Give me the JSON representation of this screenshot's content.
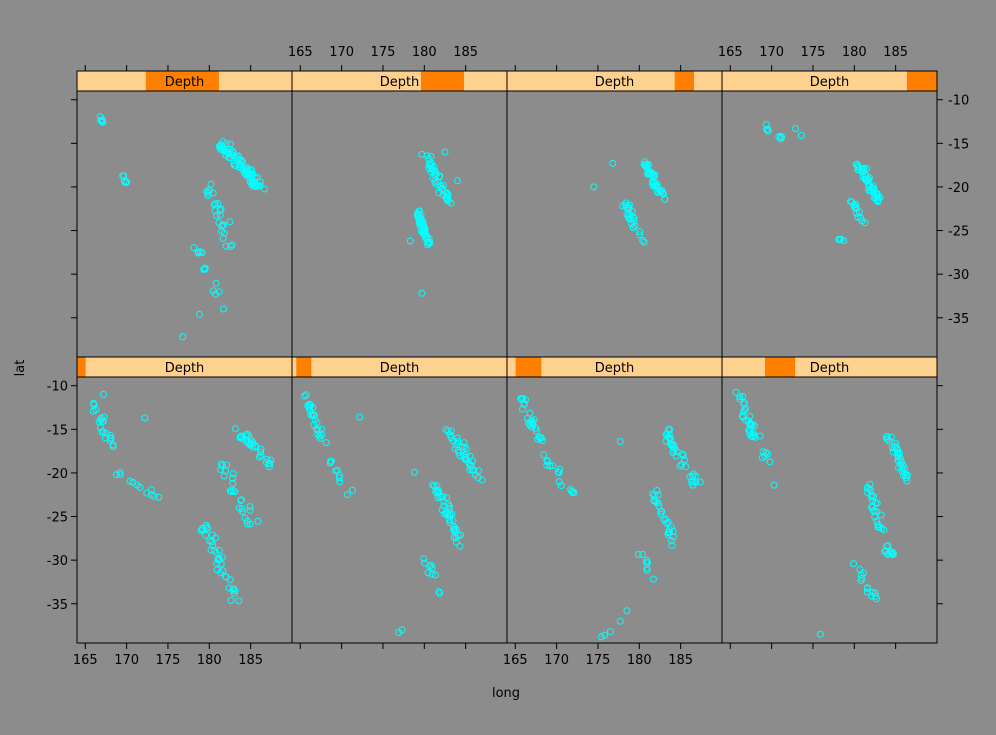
{
  "colors": {
    "background": "#8c8c8c",
    "strip_bg": "#ffd18f",
    "strip_fg": "#ff8000",
    "points": "#00ffff",
    "frame": "#000000"
  },
  "chart_data": {
    "type": "scatter",
    "layout": "conditioned scatterplot matrix, 4 columns x 2 rows",
    "title": "",
    "xlabel": "long",
    "ylabel": "lat",
    "strip_label": "Depth",
    "xlim": [
      164,
      190
    ],
    "ylim": [
      -39.5,
      -9
    ],
    "x_ticks": [
      165,
      170,
      175,
      180,
      185
    ],
    "y_ticks": [
      -10,
      -15,
      -20,
      -25,
      -30,
      -35
    ],
    "x_tick_labels": [
      "165",
      "170",
      "175",
      "180",
      "185"
    ],
    "y_tick_labels": [
      "-10",
      "-15",
      "-20",
      "-25",
      "-30",
      "-35"
    ],
    "grid": false,
    "marker": "open circle",
    "panels": [
      {
        "row": "top",
        "col": 1,
        "depth_range": [
          0.32,
          0.66
        ],
        "clusters": [
          {
            "x": [
              166.8,
              167.3
            ],
            "y": [
              -12.0,
              -13.0
            ],
            "n": 5
          },
          {
            "x": [
              169.5,
              170.0
            ],
            "y": [
              -18.8,
              -19.5
            ],
            "n": 6
          },
          {
            "x": [
              181.5,
              186.0
            ],
            "y": [
              -15.0,
              -20.0
            ],
            "n": 80
          },
          {
            "x": [
              180.0,
              182.5
            ],
            "y": [
              -20.0,
              -27.0
            ],
            "n": 24
          },
          {
            "x": [
              178.5,
              181.0
            ],
            "y": [
              -27.0,
              -32.5
            ],
            "n": 12
          }
        ],
        "points": [
          [
            176.8,
            -37.2
          ],
          [
            178.8,
            -34.6
          ],
          [
            181.7,
            -34.0
          ],
          [
            180.2,
            -19.7
          ],
          [
            182.5,
            -24.0
          ]
        ]
      },
      {
        "row": "top",
        "col": 2,
        "depth_range": [
          0.6,
          0.8
        ],
        "clusters": [
          {
            "x": [
              180.0,
              183.0
            ],
            "y": [
              -16.0,
              -22.0
            ],
            "n": 40
          },
          {
            "x": [
              179.0,
              180.5
            ],
            "y": [
              -22.5,
              -26.5
            ],
            "n": 45
          }
        ],
        "points": [
          [
            179.7,
            -32.2
          ],
          [
            178.3,
            -26.2
          ],
          [
            184.0,
            -19.3
          ],
          [
            182.5,
            -16.0
          ]
        ]
      },
      {
        "row": "top",
        "col": 3,
        "depth_range": [
          0.78,
          0.87
        ],
        "clusters": [
          {
            "x": [
              180.8,
              182.8
            ],
            "y": [
              -17.2,
              -21.5
            ],
            "n": 40
          },
          {
            "x": [
              178.0,
              180.5
            ],
            "y": [
              -21.5,
              -26.5
            ],
            "n": 25
          }
        ],
        "points": [
          [
            174.5,
            -20.0
          ],
          [
            176.8,
            -17.3
          ]
        ]
      },
      {
        "row": "top",
        "col": 4,
        "depth_range": [
          0.86,
          1.0
        ],
        "clusters": [
          {
            "x": [
              168.8,
              171.5
            ],
            "y": [
              -12.8,
              -14.8
            ],
            "n": 8
          },
          {
            "x": [
              180.5,
              182.8
            ],
            "y": [
              -17.5,
              -21.5
            ],
            "n": 45
          },
          {
            "x": [
              179.5,
              181.2
            ],
            "y": [
              -21.5,
              -24.5
            ],
            "n": 14
          },
          {
            "x": [
              178.2,
              179.0
            ],
            "y": [
              -25.8,
              -26.5
            ],
            "n": 5
          }
        ],
        "points": [
          [
            172.9,
            -13.3
          ],
          [
            173.6,
            -14.1
          ],
          [
            181.5,
            -17.9
          ]
        ]
      },
      {
        "row": "bottom",
        "col": 1,
        "depth_range": [
          0.0,
          0.04
        ],
        "clusters": [
          {
            "x": [
              165.5,
              168.5
            ],
            "y": [
              -11.5,
              -17.0
            ],
            "n": 22
          },
          {
            "x": [
              168.5,
              173.5
            ],
            "y": [
              -19.5,
              -23.0
            ],
            "n": 12
          },
          {
            "x": [
              183.5,
              188.0
            ],
            "y": [
              -15.0,
              -20.0
            ],
            "n": 30
          },
          {
            "x": [
              181.5,
              185.5
            ],
            "y": [
              -19.0,
              -26.0
            ],
            "n": 25
          },
          {
            "x": [
              179.5,
              183.5
            ],
            "y": [
              -26.0,
              -35.5
            ],
            "n": 35
          }
        ],
        "points": [
          [
            172.2,
            -13.7
          ],
          [
            167.2,
            -11.0
          ]
        ]
      },
      {
        "row": "bottom",
        "col": 2,
        "depth_range": [
          0.02,
          0.09
        ],
        "clusters": [
          {
            "x": [
              165.6,
              167.8
            ],
            "y": [
              -10.8,
              -16.5
            ],
            "n": 25
          },
          {
            "x": [
              168.5,
              171.3
            ],
            "y": [
              -18.5,
              -22.8
            ],
            "n": 10
          },
          {
            "x": [
              183.0,
              187.0
            ],
            "y": [
              -15.0,
              -21.0
            ],
            "n": 35
          },
          {
            "x": [
              181.3,
              184.5
            ],
            "y": [
              -21.0,
              -28.5
            ],
            "n": 40
          },
          {
            "x": [
              179.5,
              182.0
            ],
            "y": [
              -28.5,
              -34.5
            ],
            "n": 10
          }
        ],
        "points": [
          [
            172.2,
            -13.6
          ],
          [
            178.8,
            -19.9
          ],
          [
            177.3,
            -38.0
          ],
          [
            176.9,
            -38.3
          ]
        ]
      },
      {
        "row": "bottom",
        "col": 3,
        "depth_range": [
          0.04,
          0.16
        ],
        "clusters": [
          {
            "x": [
              165.5,
              168.0
            ],
            "y": [
              -10.8,
              -16.5
            ],
            "n": 25
          },
          {
            "x": [
              168.5,
              171.8
            ],
            "y": [
              -18.0,
              -22.5
            ],
            "n": 15
          },
          {
            "x": [
              183.0,
              187.0
            ],
            "y": [
              -15.0,
              -21.5
            ],
            "n": 35
          },
          {
            "x": [
              181.5,
              184.5
            ],
            "y": [
              -21.5,
              -29.0
            ],
            "n": 25
          },
          {
            "x": [
              180.0,
              182.5
            ],
            "y": [
              -29.0,
              -33.5
            ],
            "n": 8
          }
        ],
        "points": [
          [
            177.7,
            -16.4
          ],
          [
            178.5,
            -35.8
          ],
          [
            177.7,
            -37.0
          ],
          [
            176.5,
            -38.2
          ],
          [
            175.8,
            -38.6
          ],
          [
            175.4,
            -38.8
          ]
        ]
      },
      {
        "row": "bottom",
        "col": 4,
        "depth_range": [
          0.2,
          0.34
        ],
        "clusters": [
          {
            "x": [
              165.8,
              169.5
            ],
            "y": [
              -10.8,
              -19.0
            ],
            "n": 35
          },
          {
            "x": [
              184.0,
              186.5
            ],
            "y": [
              -15.5,
              -21.0
            ],
            "n": 35
          },
          {
            "x": [
              181.5,
              184.5
            ],
            "y": [
              -21.0,
              -30.0
            ],
            "n": 35
          },
          {
            "x": [
              180.0,
              182.5
            ],
            "y": [
              -30.0,
              -34.5
            ],
            "n": 14
          }
        ],
        "points": [
          [
            170.3,
            -21.4
          ],
          [
            175.9,
            -38.5
          ]
        ]
      }
    ]
  }
}
